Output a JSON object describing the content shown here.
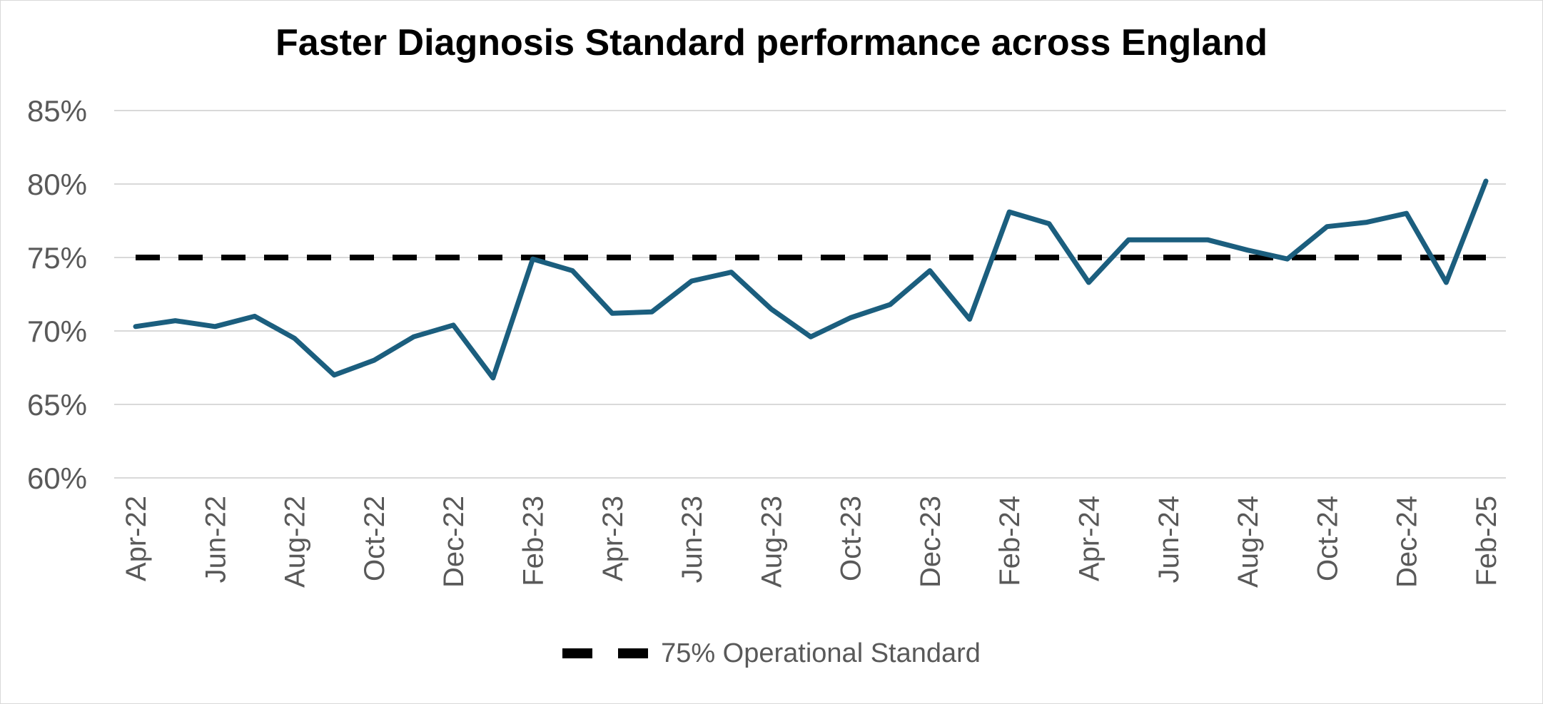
{
  "chart_data": {
    "type": "line",
    "title": "Faster Diagnosis Standard performance across England",
    "xlabel": "",
    "ylabel": "",
    "ylim": [
      0.6,
      0.85
    ],
    "y_ticks": [
      0.6,
      0.65,
      0.7,
      0.75,
      0.8,
      0.85
    ],
    "y_tick_labels": [
      "60%",
      "65%",
      "70%",
      "75%",
      "80%",
      "85%"
    ],
    "grid": true,
    "categories": [
      "Apr-22",
      "May-22",
      "Jun-22",
      "Jul-22",
      "Aug-22",
      "Sep-22",
      "Oct-22",
      "Nov-22",
      "Dec-22",
      "Jan-23",
      "Feb-23",
      "Mar-23",
      "Apr-23",
      "May-23",
      "Jun-23",
      "Jul-23",
      "Aug-23",
      "Sep-23",
      "Oct-23",
      "Nov-23",
      "Dec-23",
      "Jan-24",
      "Feb-24",
      "Mar-24",
      "Apr-24",
      "May-24",
      "Jun-24",
      "Jul-24",
      "Aug-24",
      "Sep-24",
      "Oct-24",
      "Nov-24",
      "Dec-24",
      "Jan-25",
      "Feb-25"
    ],
    "x_tick_labels_shown": [
      "Apr-22",
      "Jun-22",
      "Aug-22",
      "Oct-22",
      "Dec-22",
      "Feb-23",
      "Apr-23",
      "Jun-23",
      "Aug-23",
      "Oct-23",
      "Dec-23",
      "Feb-24",
      "Apr-24",
      "Jun-24",
      "Aug-24",
      "Oct-24",
      "Dec-24",
      "Feb-25"
    ],
    "series": [
      {
        "color": "#1b5e7e",
        "values": [
          0.703,
          0.707,
          0.703,
          0.71,
          0.695,
          0.67,
          0.68,
          0.696,
          0.704,
          0.668,
          0.749,
          0.741,
          0.712,
          0.713,
          0.734,
          0.74,
          0.715,
          0.696,
          0.709,
          0.718,
          0.741,
          0.708,
          0.781,
          0.773,
          0.733,
          0.762,
          0.762,
          0.762,
          0.755,
          0.749,
          0.771,
          0.774,
          0.78,
          0.733,
          0.802
        ]
      },
      {
        "name": "75% Operational Standard",
        "color": "#000000",
        "style": "dashed",
        "values": [
          0.75,
          0.75,
          0.75,
          0.75,
          0.75,
          0.75,
          0.75,
          0.75,
          0.75,
          0.75,
          0.75,
          0.75,
          0.75,
          0.75,
          0.75,
          0.75,
          0.75,
          0.75,
          0.75,
          0.75,
          0.75,
          0.75,
          0.75,
          0.75,
          0.75,
          0.75,
          0.75,
          0.75,
          0.75,
          0.75,
          0.75,
          0.75,
          0.75,
          0.75,
          0.75
        ]
      }
    ],
    "legend": {
      "position": "bottom",
      "label": "75% Operational Standard"
    }
  }
}
